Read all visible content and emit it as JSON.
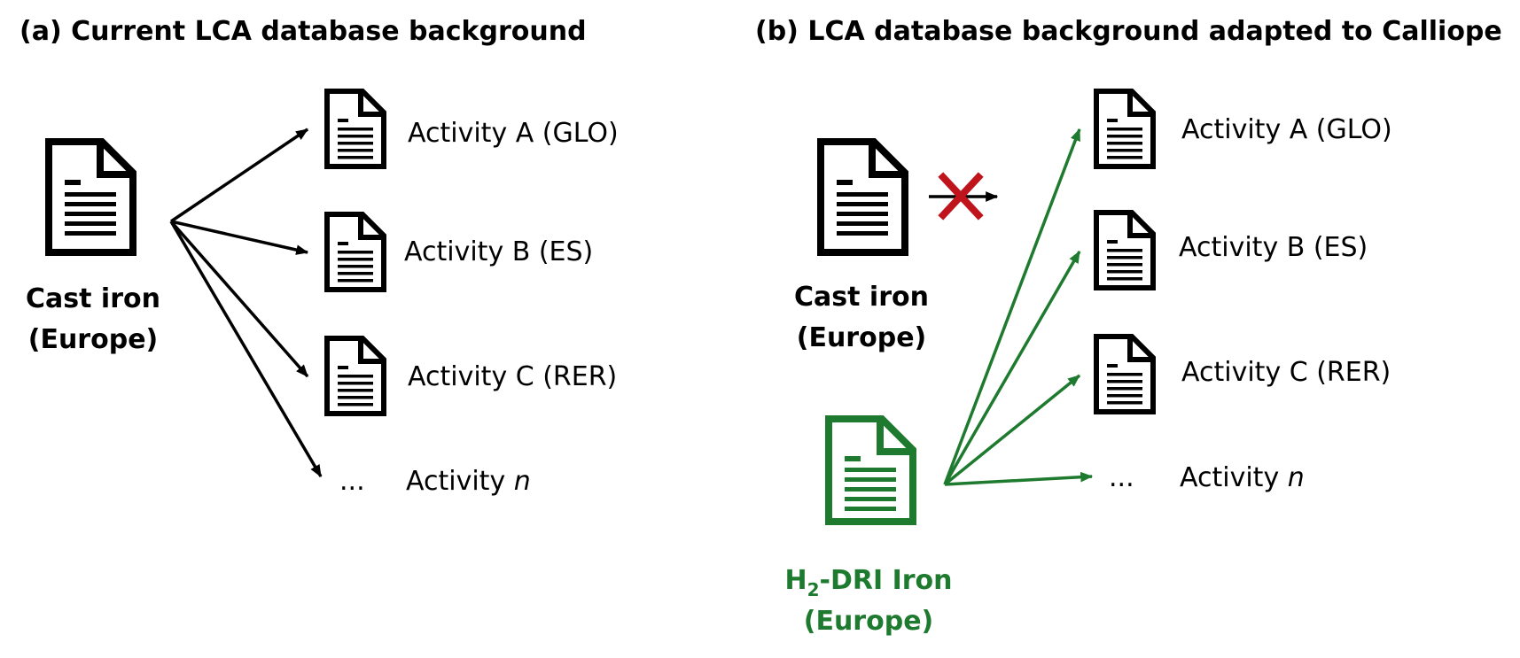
{
  "colors": {
    "black": "#000000",
    "green": "#1e7a2e",
    "cross_red": "#c0141c"
  },
  "panel_a": {
    "title": "(a) Current LCA database background",
    "source": {
      "icon": "document-icon",
      "label_line1": "Cast iron",
      "label_line2": "(Europe)"
    },
    "activities": [
      {
        "prefix": "Activity A (GLO)",
        "italic": ""
      },
      {
        "prefix": "Activity B (ES)",
        "italic": ""
      },
      {
        "prefix": "Activity C (RER)",
        "italic": ""
      },
      {
        "prefix": "Activity ",
        "italic": "n"
      }
    ],
    "ellipsis": "..."
  },
  "panel_b": {
    "title": "(b) LCA database background adapted to Calliope",
    "source": {
      "icon": "document-icon",
      "label_line1": "Cast iron",
      "label_line2": "(Europe)"
    },
    "blocked_marker": "cross-icon",
    "new_source": {
      "icon": "document-icon",
      "label_line1_pre": "H",
      "label_line1_sub": "2",
      "label_line1_post": "-DRI Iron",
      "label_line2": "(Europe)"
    },
    "activities": [
      {
        "prefix": "Activity A (GLO)",
        "italic": ""
      },
      {
        "prefix": "Activity B (ES)",
        "italic": ""
      },
      {
        "prefix": "Activity C (RER)",
        "italic": ""
      },
      {
        "prefix": "Activity ",
        "italic": "n"
      }
    ],
    "ellipsis": "..."
  }
}
